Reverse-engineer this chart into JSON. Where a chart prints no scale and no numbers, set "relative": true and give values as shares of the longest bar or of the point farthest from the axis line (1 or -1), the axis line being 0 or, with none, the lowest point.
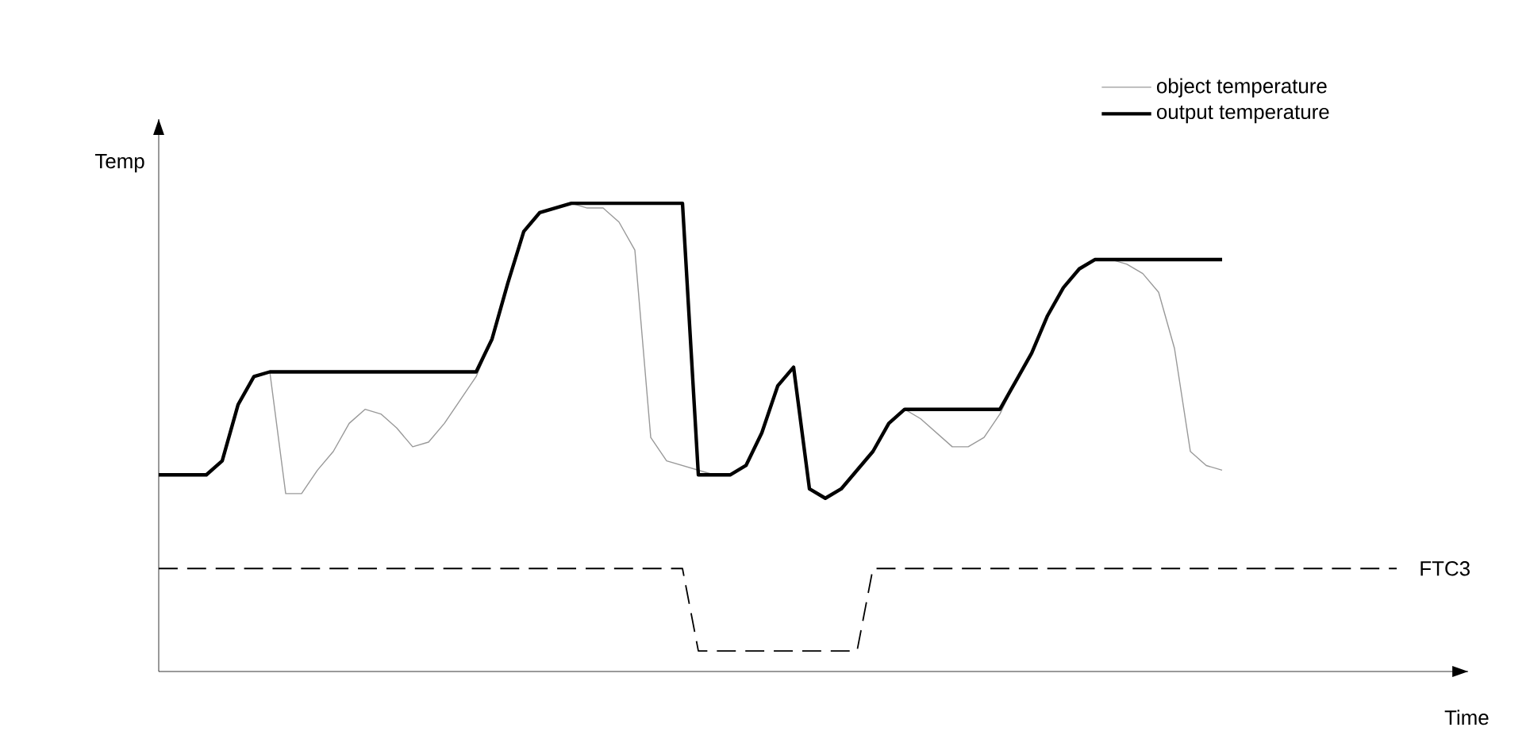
{
  "chart_data": {
    "type": "line",
    "relative": true,
    "xlabel": "Time",
    "ylabel": "Temp",
    "legend": "top right",
    "categories": [
      null,
      null,
      null,
      null,
      null,
      null,
      null,
      null,
      null,
      null,
      null,
      null,
      null,
      null,
      null,
      null,
      null,
      null,
      null,
      null,
      null,
      null,
      null,
      null,
      null,
      null,
      null,
      null,
      null,
      null,
      null,
      null,
      null,
      null,
      null,
      null,
      null,
      null,
      null,
      null,
      null,
      null,
      null,
      null,
      null,
      null,
      null,
      null,
      null,
      null,
      null,
      null,
      null,
      null,
      null,
      null,
      null,
      null,
      null,
      null,
      null,
      null,
      null,
      null,
      null,
      null,
      null,
      null,
      null,
      null,
      null,
      null,
      null,
      null,
      null,
      null,
      null,
      null,
      null
    ],
    "series": [
      {
        "name": "object temperature",
        "color": "#999999",
        "values": [
          0.42,
          0.42,
          0.42,
          0.42,
          0.45,
          0.57,
          0.63,
          0.64,
          0.38,
          0.38,
          0.43,
          0.47,
          0.53,
          0.56,
          0.55,
          0.52,
          0.48,
          0.49,
          0.53,
          0.58,
          0.63,
          0.71,
          0.83,
          0.94,
          0.98,
          0.99,
          1.0,
          0.99,
          0.99,
          0.96,
          0.9,
          0.5,
          0.45,
          0.44,
          0.43,
          0.42,
          0.42,
          0.44,
          0.51,
          0.61,
          0.65,
          0.39,
          0.37,
          0.39,
          0.43,
          0.47,
          0.53,
          0.56,
          0.54,
          0.51,
          0.48,
          0.48,
          0.5,
          0.55,
          0.62,
          0.68,
          0.76,
          0.82,
          0.86,
          0.88,
          0.88,
          0.87,
          0.85,
          0.81,
          0.69,
          0.47,
          0.44,
          0.43,
          null,
          null,
          null,
          null,
          null,
          null,
          null,
          null,
          null,
          null,
          null
        ]
      },
      {
        "name": "output temperature",
        "color": "#000000",
        "values": [
          0.42,
          0.42,
          0.42,
          0.42,
          0.45,
          0.57,
          0.63,
          0.64,
          0.64,
          0.64,
          0.64,
          0.64,
          0.64,
          0.64,
          0.64,
          0.64,
          0.64,
          0.64,
          0.64,
          0.64,
          0.64,
          0.71,
          0.83,
          0.94,
          0.98,
          0.99,
          1.0,
          1.0,
          1.0,
          1.0,
          1.0,
          1.0,
          1.0,
          1.0,
          0.42,
          0.42,
          0.42,
          0.44,
          0.51,
          0.61,
          0.65,
          0.39,
          0.37,
          0.39,
          0.43,
          0.47,
          0.53,
          0.56,
          0.56,
          0.56,
          0.56,
          0.56,
          0.56,
          0.56,
          0.62,
          0.68,
          0.76,
          0.82,
          0.86,
          0.88,
          0.88,
          0.88,
          0.88,
          0.88,
          0.88,
          0.88,
          0.88,
          0.88,
          null,
          null,
          null,
          null,
          null,
          null,
          null,
          null,
          null,
          null,
          null
        ]
      },
      {
        "name": "FTC3",
        "color": "#000000",
        "line_style": "dashed",
        "values": [
          0.22,
          0.22,
          0.22,
          0.22,
          0.22,
          0.22,
          0.22,
          0.22,
          0.22,
          0.22,
          0.22,
          0.22,
          0.22,
          0.22,
          0.22,
          0.22,
          0.22,
          0.22,
          0.22,
          0.22,
          0.22,
          0.22,
          0.22,
          0.22,
          0.22,
          0.22,
          0.22,
          0.22,
          0.22,
          0.22,
          0.22,
          0.22,
          0.22,
          0.22,
          0.044,
          0.044,
          0.044,
          0.044,
          0.044,
          0.044,
          0.044,
          0.044,
          0.044,
          0.044,
          0.044,
          0.22,
          0.22,
          0.22,
          0.22,
          0.22,
          0.22,
          0.22,
          0.22,
          0.22,
          0.22,
          0.22,
          0.22,
          0.22,
          0.22,
          0.22,
          0.22,
          0.22,
          0.22,
          0.22,
          0.22,
          0.22,
          0.22,
          0.22,
          0.22,
          0.22,
          0.22,
          0.22,
          0.22,
          0.22,
          0.22,
          0.22,
          0.22,
          0.22,
          0.22
        ]
      }
    ]
  }
}
